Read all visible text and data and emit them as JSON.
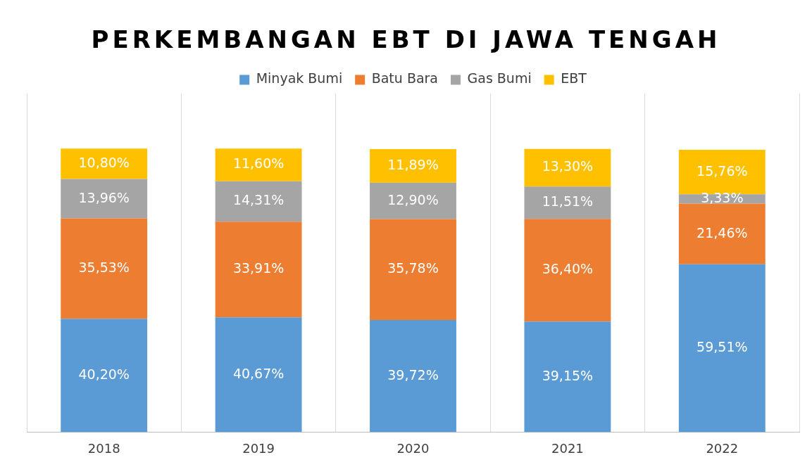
{
  "chart_data": {
    "type": "bar",
    "title": "PERKEMBANGAN EBT DI JAWA TENGAH",
    "categories": [
      "2018",
      "2019",
      "2020",
      "2021",
      "2022"
    ],
    "stacked": true,
    "grid": "x",
    "legend": "top",
    "tick_labels": "x",
    "series": [
      {
        "name": "Minyak Bumi",
        "color": "#5b9bd5",
        "values": [
          40.2,
          40.67,
          39.72,
          39.15,
          59.51
        ],
        "value_labels": [
          "40,20%",
          "40,67%",
          "39,72%",
          "39,15%",
          "59,51%"
        ]
      },
      {
        "name": "Batu Bara",
        "color": "#ed7d31",
        "values": [
          35.53,
          33.91,
          35.78,
          36.4,
          21.46
        ],
        "value_labels": [
          "35,53%",
          "33,91%",
          "35,78%",
          "36,40%",
          "21,46%"
        ]
      },
      {
        "name": "Gas Bumi",
        "color": "#a5a5a5",
        "values": [
          13.96,
          14.31,
          12.9,
          11.51,
          3.33
        ],
        "value_labels": [
          "13,96%",
          "14,31%",
          "12,90%",
          "11,51%",
          "3,33%"
        ]
      },
      {
        "name": "EBT",
        "color": "#ffc000",
        "values": [
          10.8,
          11.6,
          11.89,
          13.3,
          15.76
        ],
        "value_labels": [
          "10,80%",
          "11,60%",
          "11,89%",
          "13,30%",
          "15,76%"
        ]
      }
    ]
  }
}
